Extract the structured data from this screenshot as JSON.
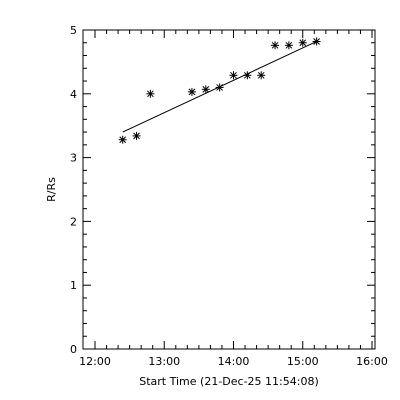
{
  "chart_data": {
    "type": "scatter",
    "xlabel": "Start Time (21-Dec-25 11:54:08)",
    "ylabel": "R/Rs",
    "xlim": [
      "12:00",
      "16:00"
    ],
    "ylim": [
      0,
      5
    ],
    "x_ticks": [
      "12:00",
      "13:00",
      "14:00",
      "15:00",
      "16:00"
    ],
    "y_ticks": [
      "0",
      "1",
      "2",
      "3",
      "4",
      "5"
    ],
    "grid": false,
    "legend": "none",
    "series": [
      {
        "type": "scatter",
        "marker": "asterisk",
        "x": [
          "12:24",
          "12:36",
          "12:48",
          "13:24",
          "13:36",
          "13:48",
          "14:00",
          "14:12",
          "14:24",
          "14:36",
          "14:48",
          "15:00",
          "15:12"
        ],
        "y": [
          3.28,
          3.34,
          4.0,
          4.03,
          4.07,
          4.1,
          4.29,
          4.29,
          4.29,
          4.76,
          4.76,
          4.8,
          4.82
        ]
      },
      {
        "type": "line",
        "x": [
          "12:24",
          "15:12"
        ],
        "y": [
          3.4,
          4.82
        ]
      }
    ]
  }
}
